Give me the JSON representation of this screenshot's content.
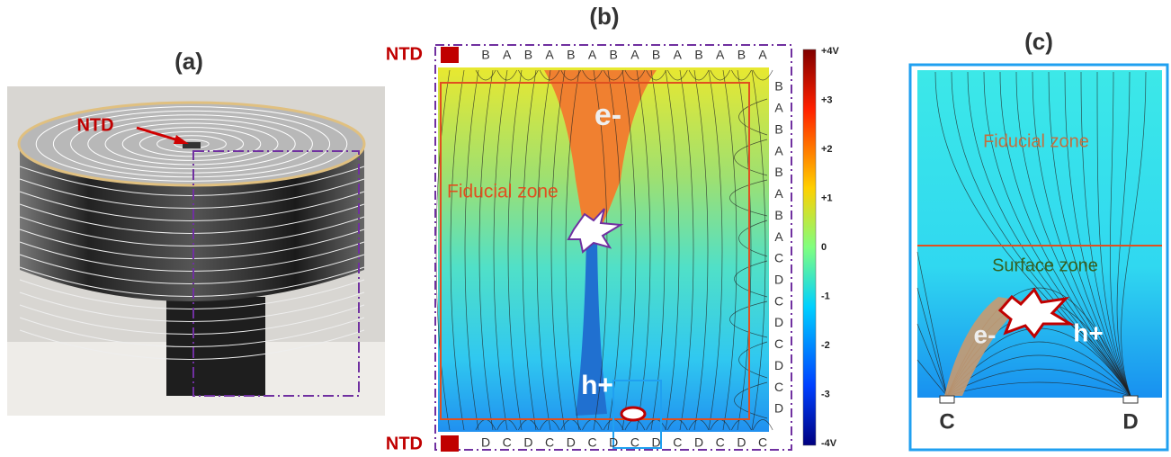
{
  "panel_a": {
    "label": "(a)",
    "ntd": "NTD"
  },
  "panel_b": {
    "label": "(b)",
    "ntd_top": "NTD",
    "ntd_bottom": "NTD",
    "top_electrodes": [
      "B",
      "A",
      "B",
      "A",
      "B",
      "A",
      "B",
      "A",
      "B",
      "A",
      "B",
      "A",
      "B",
      "A"
    ],
    "right_electrodes": [
      "B",
      "A",
      "B",
      "A",
      "B",
      "A",
      "B",
      "A",
      "C",
      "D",
      "C",
      "D",
      "C",
      "D",
      "C",
      "D"
    ],
    "bottom_electrodes": [
      "D",
      "C",
      "D",
      "C",
      "D",
      "C",
      "D",
      "C",
      "D",
      "C",
      "D",
      "C",
      "D",
      "C"
    ],
    "electron": "e-",
    "hole": "h+",
    "fiducial": "Fiducial zone",
    "colorbar": [
      "+4V",
      "+3",
      "+2",
      "+1",
      "0",
      "-1",
      "-2",
      "-3",
      "-4V"
    ]
  },
  "panel_c": {
    "label": "(c)",
    "fiducial": "Fiducial zone",
    "surface": "Surface zone",
    "electron": "e-",
    "hole": "h+",
    "left_electrode": "C",
    "right_electrode": "D"
  }
}
